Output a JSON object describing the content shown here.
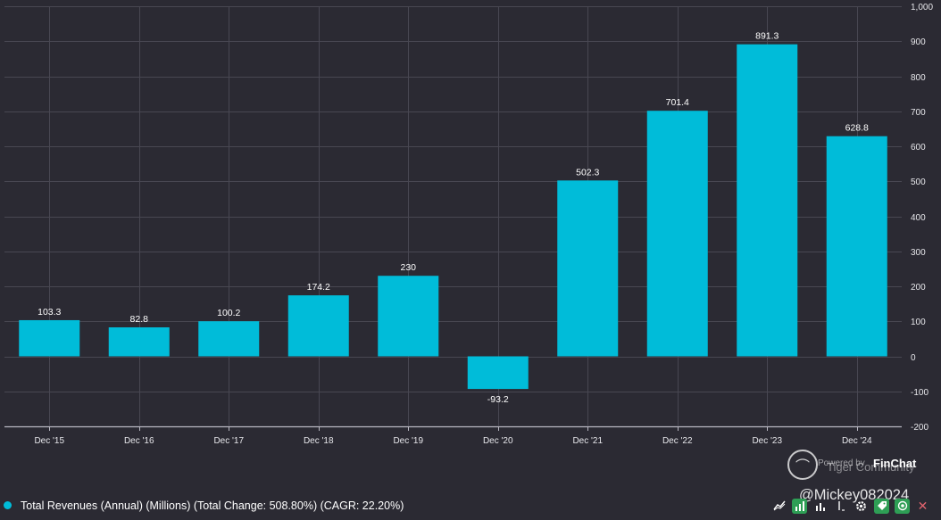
{
  "chart_data": {
    "type": "bar",
    "categories": [
      "Dec '15",
      "Dec '16",
      "Dec '17",
      "Dec '18",
      "Dec '19",
      "Dec '20",
      "Dec '21",
      "Dec '22",
      "Dec '23",
      "Dec '24"
    ],
    "values": [
      103.3,
      82.8,
      100.2,
      174.2,
      230,
      -93.2,
      502.3,
      701.4,
      891.3,
      628.8
    ],
    "value_labels": [
      "103.3",
      "82.8",
      "100.2",
      "174.2",
      "230",
      "-93.2",
      "502.3",
      "701.4",
      "891.3",
      "628.8"
    ],
    "ylim": [
      -200,
      1000
    ],
    "yticks": [
      -200,
      -100,
      0,
      100,
      200,
      300,
      400,
      500,
      600,
      700,
      800,
      900,
      1000
    ],
    "ytick_labels": [
      "-200",
      "-100",
      "0",
      "100",
      "200",
      "300",
      "400",
      "500",
      "600",
      "700",
      "800",
      "900",
      "1,000"
    ],
    "y_axis_side": "right",
    "grid": true,
    "bar_color": "#00bcd9",
    "background": "#2b2a33",
    "grid_color": "#484752",
    "series_name": "Total Revenues (Annual) (Millions) (Total Change: 508.80%) (CAGR: 22.20%)",
    "legend_position": "bottom-left"
  },
  "legend": {
    "label": "Total Revenues (Annual) (Millions) (Total Change: 508.80%) (CAGR: 22.20%)",
    "color": "#00bcd9"
  },
  "watermark": {
    "powered_by": "Powered by",
    "brand": "FinChat",
    "community": "Tiger Community",
    "handle": "@Mickey082024"
  },
  "toolbar": {
    "icons": [
      "line-chart-icon",
      "bar-chart-icon",
      "bar-chart-alt-icon",
      "text-cursor-icon",
      "settings-icon",
      "tag-icon",
      "view-icon",
      "close-icon"
    ],
    "close_glyph": "✕"
  }
}
